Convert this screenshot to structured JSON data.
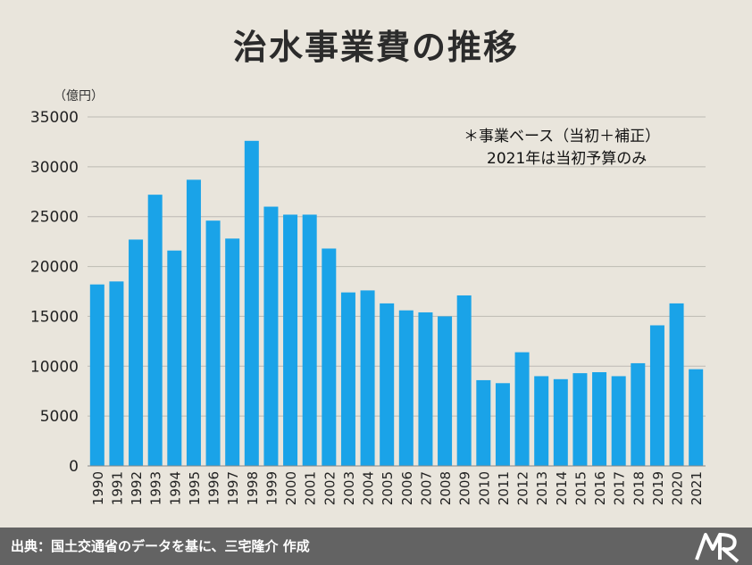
{
  "title": "治水事業費の推移",
  "footer": {
    "source": "出典：国土交通省のデータを基に、三宅隆介 作成"
  },
  "colors": {
    "bar": "#1aa3e8",
    "background": "#e9e5dc",
    "grid": "#bdbab3",
    "footer": "#636363"
  },
  "chart_data": {
    "type": "bar",
    "unit_label": "（億円）",
    "note_lines": [
      "＊事業ベース（当初＋補正）",
      "2021年は当初予算のみ"
    ],
    "ylim": [
      0,
      35000
    ],
    "yticks": [
      0,
      5000,
      10000,
      15000,
      20000,
      25000,
      30000,
      35000
    ],
    "grid": true,
    "categories": [
      "1990",
      "1991",
      "1992",
      "1993",
      "1994",
      "1995",
      "1996",
      "1997",
      "1998",
      "1999",
      "2000",
      "2001",
      "2002",
      "2003",
      "2004",
      "2005",
      "2006",
      "2007",
      "2008",
      "2009",
      "2010",
      "2011",
      "2012",
      "2013",
      "2014",
      "2015",
      "2016",
      "2017",
      "2018",
      "2019",
      "2020",
      "2021"
    ],
    "values": [
      18200,
      18500,
      22700,
      27200,
      21600,
      28700,
      24600,
      22800,
      32600,
      26000,
      25200,
      25200,
      21800,
      17400,
      17600,
      16300,
      15600,
      15400,
      15000,
      17100,
      8600,
      8300,
      11400,
      9000,
      8700,
      9300,
      9400,
      9000,
      10300,
      14100,
      16300,
      9700
    ]
  }
}
